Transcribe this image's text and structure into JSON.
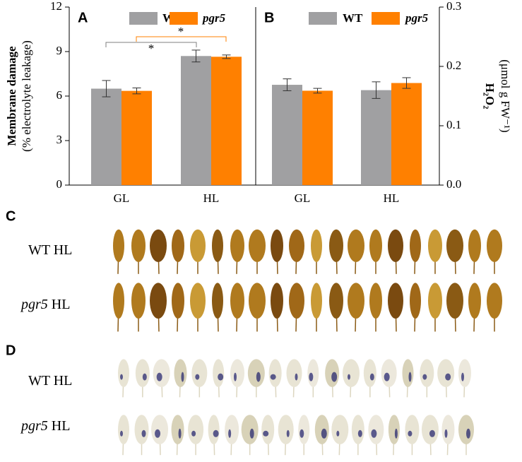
{
  "chart_data": [
    {
      "type": "bar",
      "label": "A",
      "y_label": [
        "Membrane damage",
        "(% electrolyte leakage)"
      ],
      "categories": [
        "GL",
        "HL"
      ],
      "series": [
        {
          "name": "WT",
          "color": "#a0a0a2",
          "values": [
            6.5,
            8.7
          ],
          "errors": [
            0.55,
            0.4
          ]
        },
        {
          "name": "pgr5",
          "color": "#ff8000",
          "values": [
            6.35,
            8.65
          ],
          "errors": [
            0.2,
            0.12
          ]
        }
      ],
      "ylim": [
        0,
        12
      ],
      "yticks": [
        0,
        3,
        6,
        9,
        12
      ],
      "annotations": [
        {
          "text": "*",
          "color": "#7f7f7f"
        },
        {
          "text": "*",
          "color": "#ff8000"
        }
      ]
    },
    {
      "type": "bar",
      "label": "B",
      "y_label": [
        "H₂O₂",
        "(μmol g FW⁻¹)"
      ],
      "categories": [
        "GL",
        "HL"
      ],
      "series": [
        {
          "name": "WT",
          "color": "#a0a0a2",
          "values": [
            0.169,
            0.16
          ],
          "errors": [
            0.01,
            0.014
          ],
          "axis": "y2"
        },
        {
          "name": "pgr5",
          "color": "#ff8000",
          "values": [
            0.159,
            0.172
          ],
          "errors": [
            0.004,
            0.009
          ],
          "axis": "y2"
        }
      ],
      "y2lim": [
        0,
        0.3
      ],
      "y2ticks": [
        {
          "value": 0,
          "label": "0.0"
        },
        0.1,
        0.2,
        0.3
      ]
    }
  ],
  "panels": [
    {
      "label": "C",
      "rows": [
        {
          "genotype": "WT",
          "condition": "HL"
        },
        {
          "genotype": "pgr5",
          "condition": "HL"
        }
      ]
    },
    {
      "label": "D",
      "rows": [
        {
          "genotype": "WT",
          "condition": "HL"
        },
        {
          "genotype": "pgr5",
          "condition": "HL"
        }
      ]
    }
  ]
}
